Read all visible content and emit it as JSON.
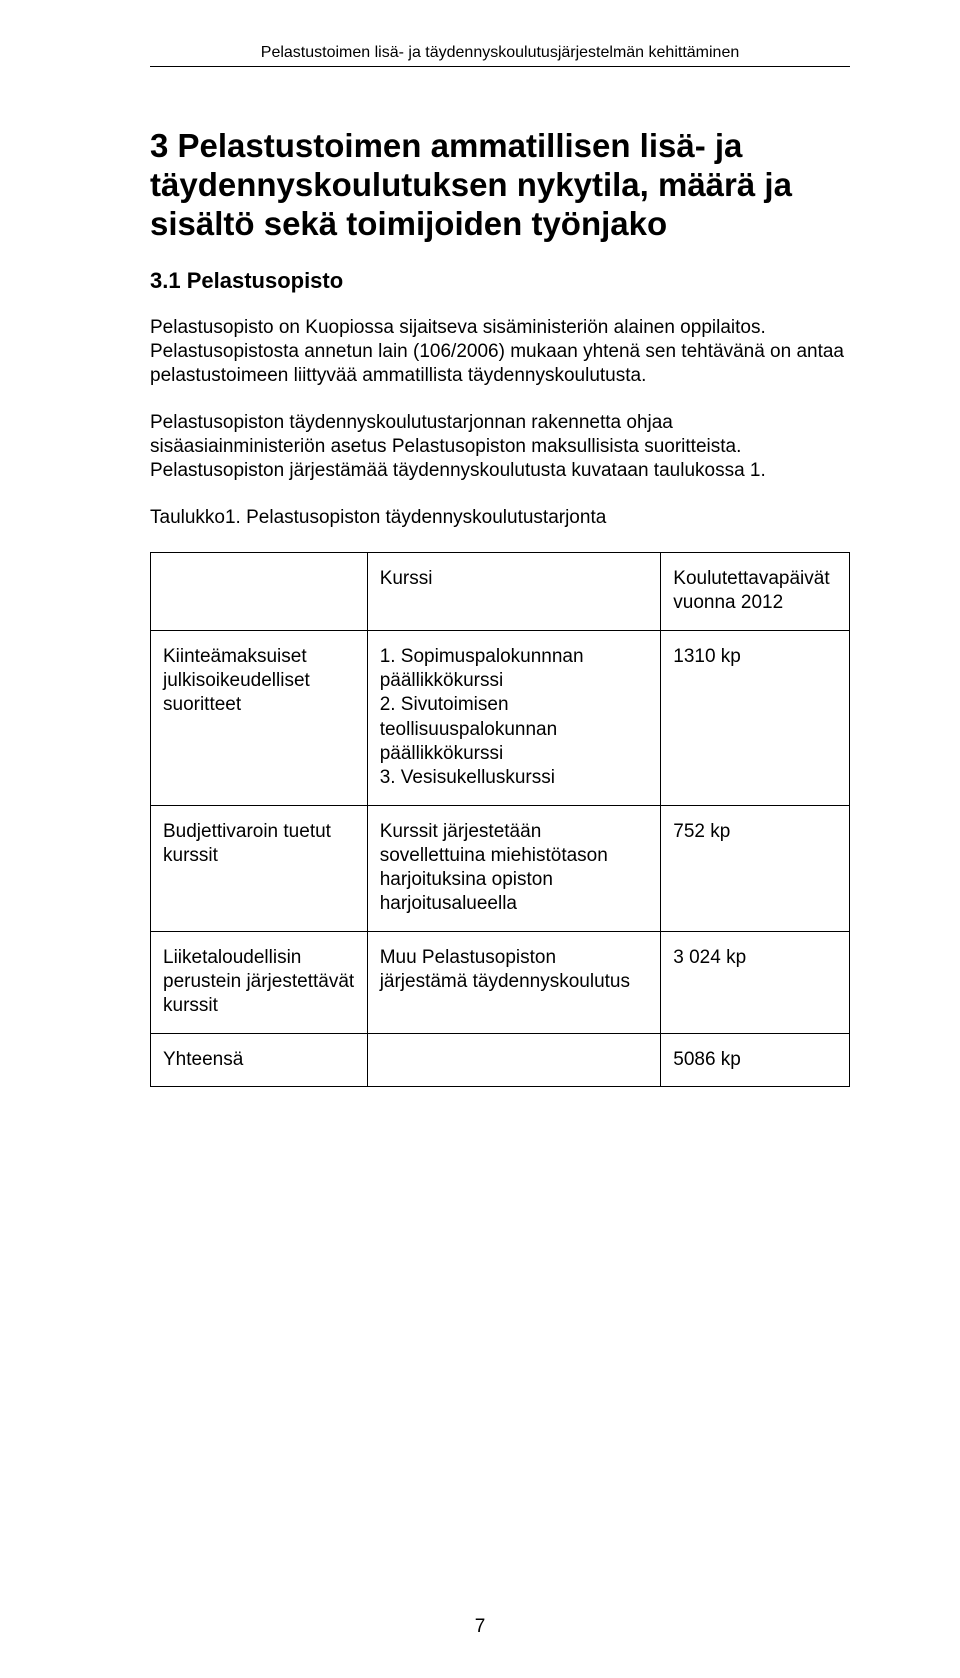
{
  "header": {
    "running_title": "Pelastustoimen lisä- ja täydennyskoulutusjärjestelmän kehittäminen"
  },
  "section": {
    "title": "3 Pelastustoimen ammatillisen lisä- ja täydennyskoulutuksen nykytila, määrä ja sisältö sekä  toimijoiden työnjako",
    "subsection_title": "3.1 Pelastusopisto",
    "para1": "Pelastusopisto on Kuopiossa sijaitseva sisäministeriön alainen oppilaitos. Pelastusopistosta annetun lain (106/2006) mukaan yhtenä sen tehtävänä on antaa pelastustoimeen liittyvää ammatillista täydennyskoulutusta.",
    "para2": "Pelastusopiston täydennyskoulutustarjonnan rakennetta ohjaa sisäasiainministeriön asetus Pelastusopiston maksullisista suoritteista. Pelastusopiston järjestämää täydennyskoulutusta kuvataan taulukossa 1.",
    "para3": "Taulukko1. Pelastusopiston täydennyskoulutustarjonta"
  },
  "table": {
    "columns": [
      {
        "key": "a",
        "width_class": "col-a"
      },
      {
        "key": "b",
        "width_class": "col-b"
      },
      {
        "key": "c",
        "width_class": "col-c"
      }
    ],
    "header_row": {
      "a": "",
      "b": "Kurssi",
      "c": "Koulutettavapäivät vuonna 2012"
    },
    "rows": [
      {
        "a": "Kiinteämaksuiset julkisoikeudelliset suoritteet",
        "b": "1. Sopimuspalokunnnan päällikkökurssi\n2. Sivutoimisen teollisuuspalokunnan päällikkökurssi\n3. Vesisukelluskurssi",
        "c": "1310 kp"
      },
      {
        "a": "Budjettivaroin tuetut kurssit",
        "b": "Kurssit järjestetään sovellettuina miehistötason harjoituksina opiston harjoitusalueella",
        "c": "752 kp"
      },
      {
        "a": "Liiketaloudellisin perustein järjestettävät kurssit",
        "b": "Muu Pelastusopiston järjestämä täydennyskoulutus",
        "c": "3 024 kp"
      },
      {
        "a": "Yhteensä",
        "b": "",
        "c": "5086 kp"
      }
    ]
  },
  "footer": {
    "page_number": "7"
  }
}
